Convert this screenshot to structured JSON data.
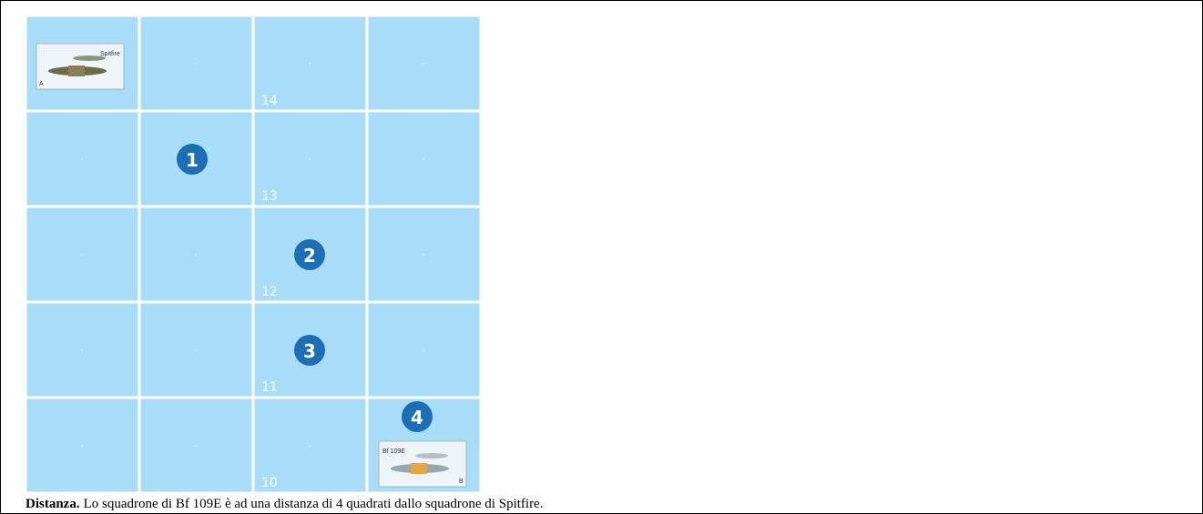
{
  "grid": {
    "row_labels": [
      "14",
      "13",
      "12",
      "11",
      "10"
    ]
  },
  "markers": [
    "1",
    "2",
    "3",
    "4"
  ],
  "counters": [
    {
      "name": "Spitfire",
      "letter": "A"
    },
    {
      "name": "Bf 109E",
      "letter": "B"
    }
  ],
  "caption": {
    "lead": "Distanza.",
    "text": "Lo squadrone di Bf 109E è ad una distanza di 4 quadrati dallo squadrone di Spitfire."
  }
}
